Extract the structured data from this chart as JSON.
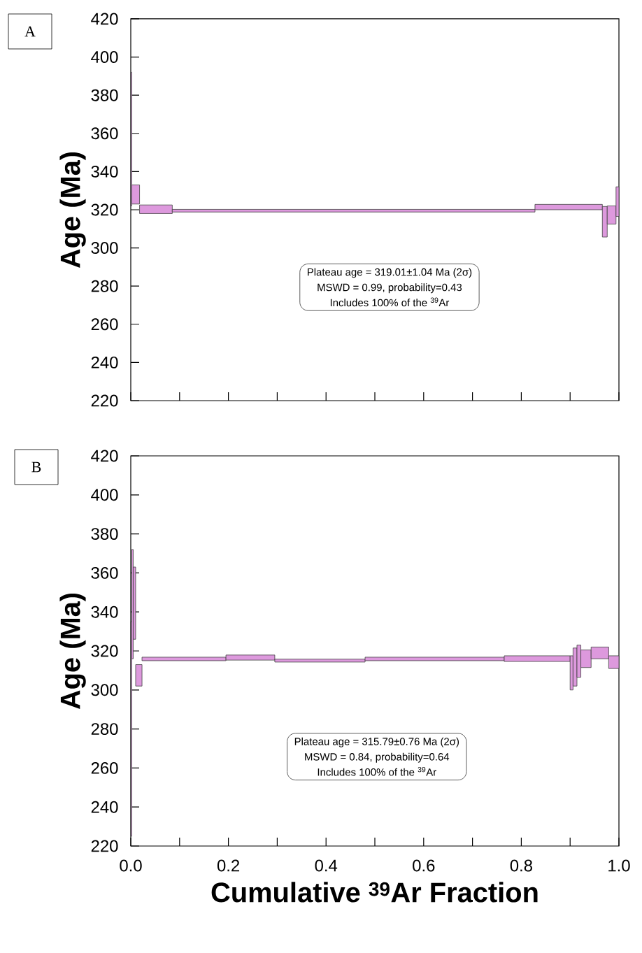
{
  "chart_data": [
    {
      "type": "histogram",
      "title": "A",
      "ylabel": "Age (Ma)",
      "color": "#dd99dd",
      "bins": [
        0,
        0.002,
        0.018,
        0.085,
        0.828,
        0.966,
        0.976,
        0.994,
        1.0
      ],
      "values": [
        70,
        10,
        4.5,
        1.4,
        2.8,
        16,
        9.5,
        15.5
      ],
      "base": [
        322,
        323,
        318,
        318.8,
        320,
        305.7,
        312.5,
        316.5
      ],
      "xlim": [
        0,
        1
      ],
      "ylim": [
        220,
        420
      ],
      "xticks": [
        0,
        0.1,
        0.2,
        0.3,
        0.4,
        0.5,
        0.6,
        0.7,
        0.8,
        0.9,
        1.0
      ],
      "yticks": [
        220,
        240,
        260,
        280,
        300,
        320,
        340,
        360,
        380,
        400,
        420
      ],
      "tick_labels": "y",
      "annotations": [
        "Plateau age = 319.01±1.04 Ma (2σ)",
        "MSWD = 0.99, probability=0.43",
        "Includes 100% of the $^{39}$Ar"
      ]
    },
    {
      "type": "histogram",
      "title": "B",
      "ylabel": "Age (Ma)",
      "xlabel": "Cumulative $^{39}$Ar Fraction",
      "color": "#dd99dd",
      "bins": [
        0,
        0.002,
        0.005,
        0.01,
        0.023,
        0.195,
        0.295,
        0.48,
        0.765,
        0.9,
        0.906,
        0.914,
        0.922,
        0.943,
        0.979,
        1.0
      ],
      "values": [
        110,
        56,
        37,
        11,
        1.8,
        2.6,
        1.5,
        1.8,
        2.9,
        17.5,
        19.5,
        16.5,
        9,
        6,
        6.5
      ],
      "base": [
        225,
        316,
        326,
        302,
        315,
        315.3,
        314.3,
        315,
        314.6,
        300,
        302,
        306.5,
        311.5,
        316,
        311
      ],
      "xlim": [
        0,
        1
      ],
      "ylim": [
        220,
        420
      ],
      "xticks": [
        {
          "value": 0,
          "label": "0.0"
        },
        {
          "value": 0.1,
          "label": null
        },
        {
          "value": 0.2,
          "label": "0.2"
        },
        {
          "value": 0.3,
          "label": null
        },
        {
          "value": 0.4,
          "label": "0.4"
        },
        {
          "value": 0.5,
          "label": null
        },
        {
          "value": 0.6,
          "label": "0.6"
        },
        {
          "value": 0.7,
          "label": null
        },
        {
          "value": 0.8,
          "label": "0.8"
        },
        {
          "value": 0.9,
          "label": null
        },
        {
          "value": 1.0,
          "label": "1.0"
        }
      ],
      "yticks": [
        220,
        240,
        260,
        280,
        300,
        320,
        340,
        360,
        380,
        400,
        420
      ],
      "annotations": [
        "Plateau age = 315.79±0.76 Ma (2σ)",
        "MSWD = 0.84, probability=0.64",
        "Includes 100% of the $^{39}$Ar"
      ]
    }
  ]
}
